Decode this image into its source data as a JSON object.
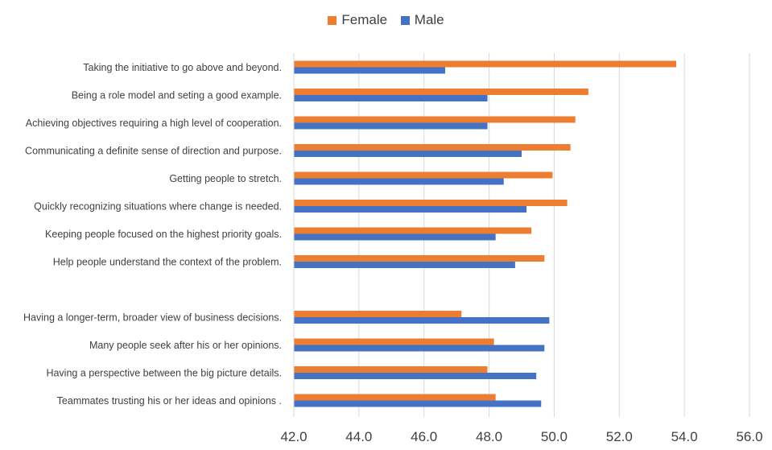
{
  "colors": {
    "female": "#ED7D31",
    "male": "#4472C4",
    "grid": "#D9D9D9"
  },
  "legend": {
    "female_label": "Female",
    "male_label": "Male"
  },
  "chart_data": {
    "type": "bar",
    "orientation": "horizontal",
    "title": "",
    "xlabel": "",
    "ylabel": "",
    "xlim": [
      42.0,
      56.0
    ],
    "x_ticks": [
      "42.0",
      "44.0",
      "46.0",
      "48.0",
      "50.0",
      "52.0",
      "54.0",
      "56.0"
    ],
    "legend_position": "top",
    "grid": true,
    "categories": [
      "Taking the initiative to go above and beyond.",
      "Being a role model and seting a good example.",
      "Achieving objectives requiring a high level of cooperation.",
      "Communicating a definite sense of direction and purpose.",
      "Getting people to stretch.",
      "Quickly recognizing situations where change is needed.",
      "Keeping people focused on the highest priority goals.",
      "Help people understand the context of the problem.",
      "",
      "Having a longer-term, broader view of business decisions.",
      "Many people seek after his or her opinions.",
      "Having a perspective between the big picture details.",
      "Teammates trusting his or her ideas and opinions ."
    ],
    "series": [
      {
        "name": "Female",
        "values": [
          53.75,
          51.05,
          50.65,
          50.5,
          49.95,
          50.4,
          49.3,
          49.7,
          null,
          47.15,
          48.15,
          47.95,
          48.2
        ]
      },
      {
        "name": "Male",
        "values": [
          46.65,
          47.95,
          47.95,
          49.0,
          48.45,
          49.15,
          48.2,
          48.8,
          null,
          49.85,
          49.7,
          49.45,
          49.6
        ]
      }
    ]
  }
}
